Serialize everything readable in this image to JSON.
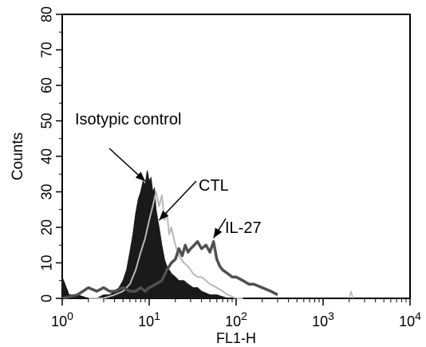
{
  "chart_data": {
    "type": "area",
    "xlabel": "FL1-H",
    "ylabel": "Counts",
    "xscale": "log",
    "xlim": [
      1,
      10000
    ],
    "ylim": [
      0,
      80
    ],
    "x_ticks": [
      {
        "base": "10",
        "exp": "0",
        "value": 1
      },
      {
        "base": "10",
        "exp": "1",
        "value": 10
      },
      {
        "base": "10",
        "exp": "2",
        "value": 100
      },
      {
        "base": "10",
        "exp": "3",
        "value": 1000
      },
      {
        "base": "10",
        "exp": "4",
        "value": 10000
      }
    ],
    "y_ticks": [
      "0",
      "10",
      "20",
      "30",
      "40",
      "50",
      "60",
      "70",
      "80"
    ],
    "grid": false,
    "annotations": [
      {
        "id": "isotypic",
        "text": "Isotypic control",
        "points_to": [
          9,
          33
        ]
      },
      {
        "id": "ctl",
        "text": "CTL",
        "points_to": [
          13,
          22
        ]
      },
      {
        "id": "il27",
        "text": "IL-27",
        "points_to": [
          55,
          17
        ]
      }
    ],
    "series": [
      {
        "id": "isotypic",
        "style": "filled",
        "color": "#1a1a1a",
        "x": [
          1,
          1.2,
          1.5,
          2,
          2.5,
          3,
          3.5,
          4,
          4.5,
          5,
          5.5,
          6,
          6.5,
          7,
          7.5,
          8,
          8.5,
          9,
          9.5,
          10,
          10.5,
          11,
          11.5,
          12,
          13,
          14,
          15,
          16,
          18,
          20,
          22,
          25,
          28,
          32,
          36,
          40,
          50,
          60,
          80,
          100
        ],
        "y": [
          6,
          1,
          1,
          0,
          0,
          1,
          1,
          2,
          3,
          5,
          8,
          13,
          18,
          24,
          28,
          30,
          33,
          32,
          36,
          33,
          34,
          30,
          31,
          25,
          20,
          15,
          11,
          9,
          7,
          6,
          5,
          5,
          4,
          3,
          3,
          2,
          1,
          1,
          0,
          0
        ]
      },
      {
        "id": "ctl",
        "style": "line",
        "color": "#b8b8b8",
        "x": [
          2,
          3,
          4,
          5,
          6,
          7,
          8,
          9,
          10,
          11,
          12,
          13,
          14,
          15,
          16,
          17,
          18,
          20,
          22,
          25,
          28,
          32,
          36,
          40,
          45,
          50,
          60,
          70,
          80,
          100,
          120
        ],
        "y": [
          0,
          0,
          1,
          2,
          4,
          8,
          13,
          17,
          22,
          26,
          30,
          26,
          29,
          22,
          24,
          18,
          20,
          15,
          12,
          10,
          9,
          7,
          6,
          6,
          5,
          4,
          3,
          2,
          1,
          0,
          0
        ],
        "extra_x": [
          2000,
          2100,
          2200
        ],
        "extra_y": [
          0,
          2,
          0
        ]
      },
      {
        "id": "il27",
        "style": "line",
        "color": "#505050",
        "x": [
          1,
          1.5,
          2,
          2.5,
          3,
          3.5,
          4,
          5,
          6,
          7,
          8,
          9,
          10,
          12,
          14,
          16,
          18,
          20,
          22,
          24,
          26,
          28,
          30,
          33,
          36,
          40,
          45,
          50,
          55,
          60,
          65,
          70,
          80,
          90,
          100,
          120,
          140,
          160,
          200,
          250,
          300
        ],
        "y": [
          0,
          1,
          3,
          2,
          3,
          2,
          2,
          3,
          2,
          2,
          3,
          2,
          3,
          4,
          5,
          8,
          10,
          11,
          14,
          12,
          15,
          13,
          14,
          15,
          16,
          14,
          15,
          13,
          16,
          11,
          9,
          8,
          7,
          6,
          6,
          5,
          4,
          4,
          3,
          2,
          1
        ]
      }
    ]
  }
}
